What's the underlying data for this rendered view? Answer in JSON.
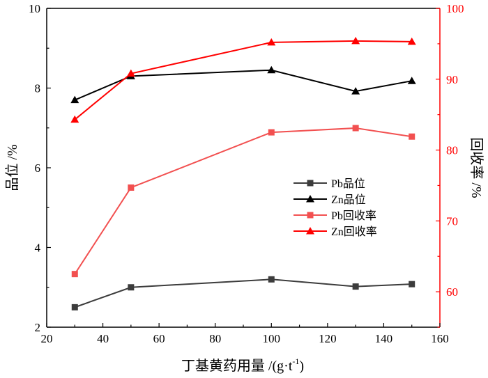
{
  "chart_data": {
    "type": "line",
    "title": "",
    "xlabel": "丁基黄药用量 /(g·t",
    "xlabel_sup": "-1",
    "xlabel_close": ")",
    "ylabel_left": "品位 /%",
    "ylabel_right": "回收率 /%",
    "xlim": [
      20,
      160
    ],
    "ylim_left": [
      2,
      10
    ],
    "ylim_right": [
      55,
      100
    ],
    "x_ticks": [
      20,
      40,
      60,
      80,
      100,
      120,
      140,
      160
    ],
    "y_left_ticks": [
      2,
      4,
      6,
      8,
      10
    ],
    "y_right_ticks": [
      60,
      70,
      80,
      90,
      100
    ],
    "grid": false,
    "legend_position": "center-right",
    "colors": {
      "black": "#000000",
      "dark_gray": "#3c3c3c",
      "red": "#ff0000",
      "light_red": "#f25050"
    },
    "series": [
      {
        "name": "Pb品位",
        "axis": "left",
        "marker": "square",
        "line_color": "#3c3c3c",
        "marker_color": "#3c3c3c",
        "x": [
          30,
          50,
          100,
          130,
          150
        ],
        "values": [
          2.5,
          3.0,
          3.2,
          3.02,
          3.08
        ]
      },
      {
        "name": "Zn品位",
        "axis": "left",
        "marker": "triangle",
        "line_color": "#000000",
        "marker_color": "#000000",
        "x": [
          30,
          50,
          100,
          130,
          150
        ],
        "values": [
          7.7,
          8.3,
          8.45,
          7.92,
          8.18
        ]
      },
      {
        "name": "Pb回收率",
        "axis": "right",
        "marker": "square",
        "line_color": "#f25050",
        "marker_color": "#f25050",
        "x": [
          30,
          50,
          100,
          130,
          150
        ],
        "values": [
          62.5,
          74.7,
          82.5,
          83.1,
          81.9
        ]
      },
      {
        "name": "Zn回收率",
        "axis": "right",
        "marker": "triangle",
        "line_color": "#ff0000",
        "marker_color": "#ff0000",
        "x": [
          30,
          50,
          100,
          130,
          150
        ],
        "values": [
          84.3,
          90.8,
          95.2,
          95.4,
          95.3
        ]
      }
    ]
  }
}
